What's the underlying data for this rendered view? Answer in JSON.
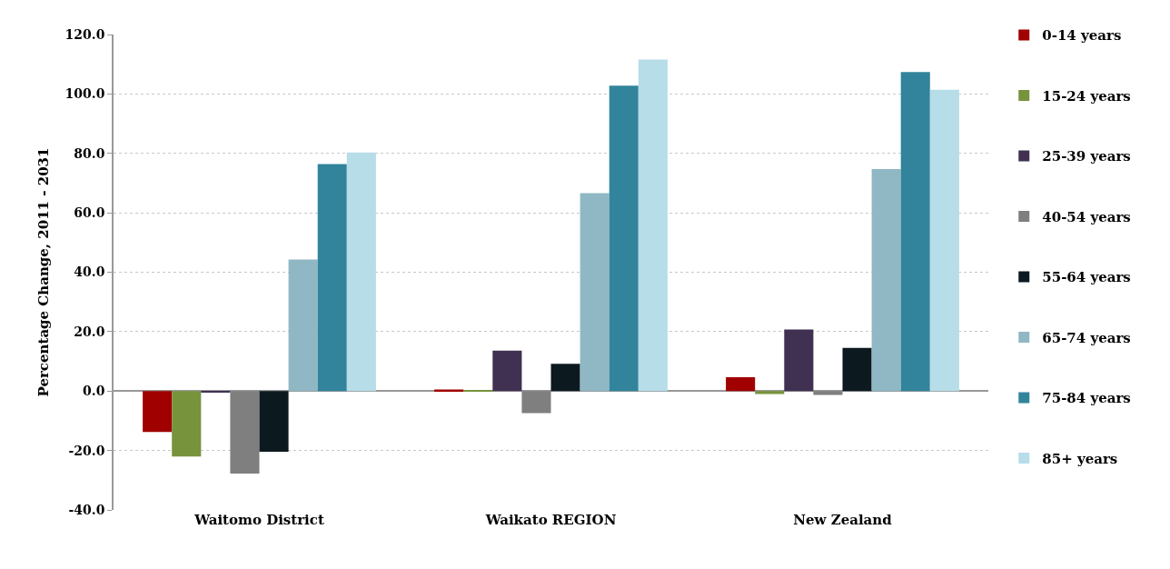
{
  "chart_data": {
    "type": "bar",
    "ylabel": "Percentage Change, 2011 - 2031",
    "categories": [
      "Waitomo District",
      "Waikato REGION",
      "New Zealand"
    ],
    "series": [
      {
        "name": "0-14 years",
        "color": "#a00000",
        "values": [
          -13.8,
          0.5,
          4.7
        ]
      },
      {
        "name": "15-24 years",
        "color": "#77933c",
        "values": [
          -22.0,
          0.3,
          -1.0
        ]
      },
      {
        "name": "25-39 years",
        "color": "#403152",
        "values": [
          -0.5,
          13.6,
          20.7
        ]
      },
      {
        "name": "40-54 years",
        "color": "#7f7f7f",
        "values": [
          -27.8,
          -7.4,
          -1.3
        ]
      },
      {
        "name": "55-64 years",
        "color": "#0c1a1f",
        "values": [
          -20.4,
          9.2,
          14.5
        ]
      },
      {
        "name": "65-74 years",
        "color": "#8fb8c4",
        "values": [
          44.3,
          66.6,
          74.7
        ]
      },
      {
        "name": "75-84 years",
        "color": "#31849b",
        "values": [
          76.4,
          102.8,
          107.4
        ]
      },
      {
        "name": "85+ years",
        "color": "#b7dde8",
        "values": [
          80.3,
          111.6,
          101.4
        ]
      }
    ],
    "ylim": [
      -40,
      120
    ],
    "yticks": [
      {
        "value": -40,
        "label": "-40.0"
      },
      {
        "value": -20,
        "label": "-20.0"
      },
      {
        "value": 0,
        "label": "0.0"
      },
      {
        "value": 20,
        "label": "20.0"
      },
      {
        "value": 40,
        "label": "40.0"
      },
      {
        "value": 60,
        "label": "60.0"
      },
      {
        "value": 80,
        "label": "80.0"
      },
      {
        "value": 100,
        "label": "100.0"
      },
      {
        "value": 120,
        "label": "120.0"
      }
    ],
    "grid": "y",
    "legend": "right"
  }
}
